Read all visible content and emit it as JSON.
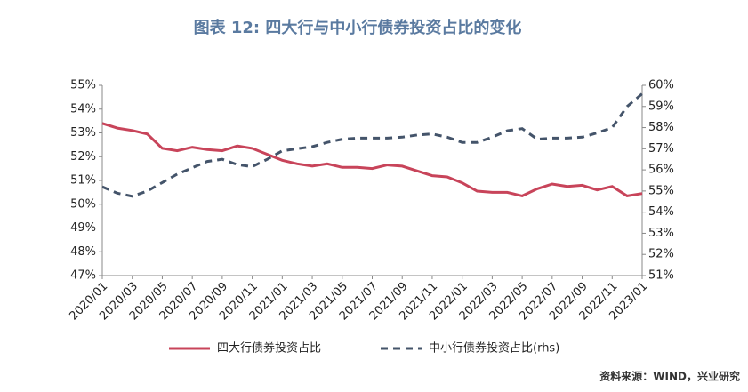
{
  "chart_data": {
    "type": "line",
    "title": "图表 12: 四大行与中小行债券投资占比的变化",
    "source": "资料来源：WIND，兴业研究",
    "categories": [
      "2020/01",
      null,
      "2020/03",
      null,
      "2020/05",
      null,
      "2020/07",
      null,
      "2020/09",
      null,
      "2020/11",
      null,
      "2021/01",
      null,
      "2021/03",
      null,
      "2021/05",
      null,
      "2021/07",
      null,
      "2021/09",
      null,
      "2021/11",
      null,
      "2022/01",
      null,
      "2022/03",
      null,
      "2022/05",
      null,
      "2022/07",
      null,
      "2022/09",
      null,
      "2022/11",
      null,
      "2023/01"
    ],
    "series": [
      {
        "name": "四大行债券投资占比",
        "color": "#c8445a",
        "dash": false,
        "values": [
          53.4,
          53.2,
          53.1,
          52.95,
          52.35,
          52.25,
          52.4,
          52.3,
          52.25,
          52.45,
          52.35,
          52.1,
          51.85,
          51.7,
          51.6,
          51.7,
          51.55,
          51.55,
          51.5,
          51.65,
          51.6,
          51.4,
          51.2,
          51.15,
          50.9,
          50.55,
          50.5,
          50.5,
          50.35,
          50.65,
          50.85,
          50.75,
          50.8,
          50.6,
          50.75,
          50.35,
          50.45
        ]
      },
      {
        "name": "中小行债券投资占比(rhs)",
        "color": "#44546a",
        "dash": true,
        "axis": "y2",
        "values": [
          55.2,
          54.9,
          54.75,
          55.0,
          55.4,
          55.8,
          56.1,
          56.4,
          56.5,
          56.25,
          56.15,
          56.5,
          56.9,
          57.0,
          57.1,
          57.3,
          57.45,
          57.5,
          57.5,
          57.5,
          57.55,
          57.65,
          57.7,
          57.55,
          57.3,
          57.3,
          57.55,
          57.85,
          57.95,
          57.45,
          57.5,
          57.5,
          57.55,
          57.75,
          58.0,
          59.0,
          59.6
        ]
      }
    ],
    "ylim": [
      47,
      55
    ],
    "yticks": [
      {
        "value": 47,
        "label": "47%"
      },
      {
        "value": 48,
        "label": "48%"
      },
      {
        "value": 49,
        "label": "49%"
      },
      {
        "value": 50,
        "label": "50%"
      },
      {
        "value": 51,
        "label": "51%"
      },
      {
        "value": 52,
        "label": "52%"
      },
      {
        "value": 53,
        "label": "53%"
      },
      {
        "value": 54,
        "label": "54%"
      },
      {
        "value": 55,
        "label": "55%"
      }
    ],
    "y2lim": [
      51,
      60
    ],
    "y2ticks": [
      {
        "value": 51,
        "label": "51%"
      },
      {
        "value": 52,
        "label": "52%"
      },
      {
        "value": 53,
        "label": "53%"
      },
      {
        "value": 54,
        "label": "54%"
      },
      {
        "value": 55,
        "label": "55%"
      },
      {
        "value": 56,
        "label": "56%"
      },
      {
        "value": 57,
        "label": "57%"
      },
      {
        "value": 58,
        "label": "58%"
      },
      {
        "value": 59,
        "label": "59%"
      },
      {
        "value": 60,
        "label": "60%"
      }
    ],
    "grid": false,
    "legend": "bottom"
  }
}
